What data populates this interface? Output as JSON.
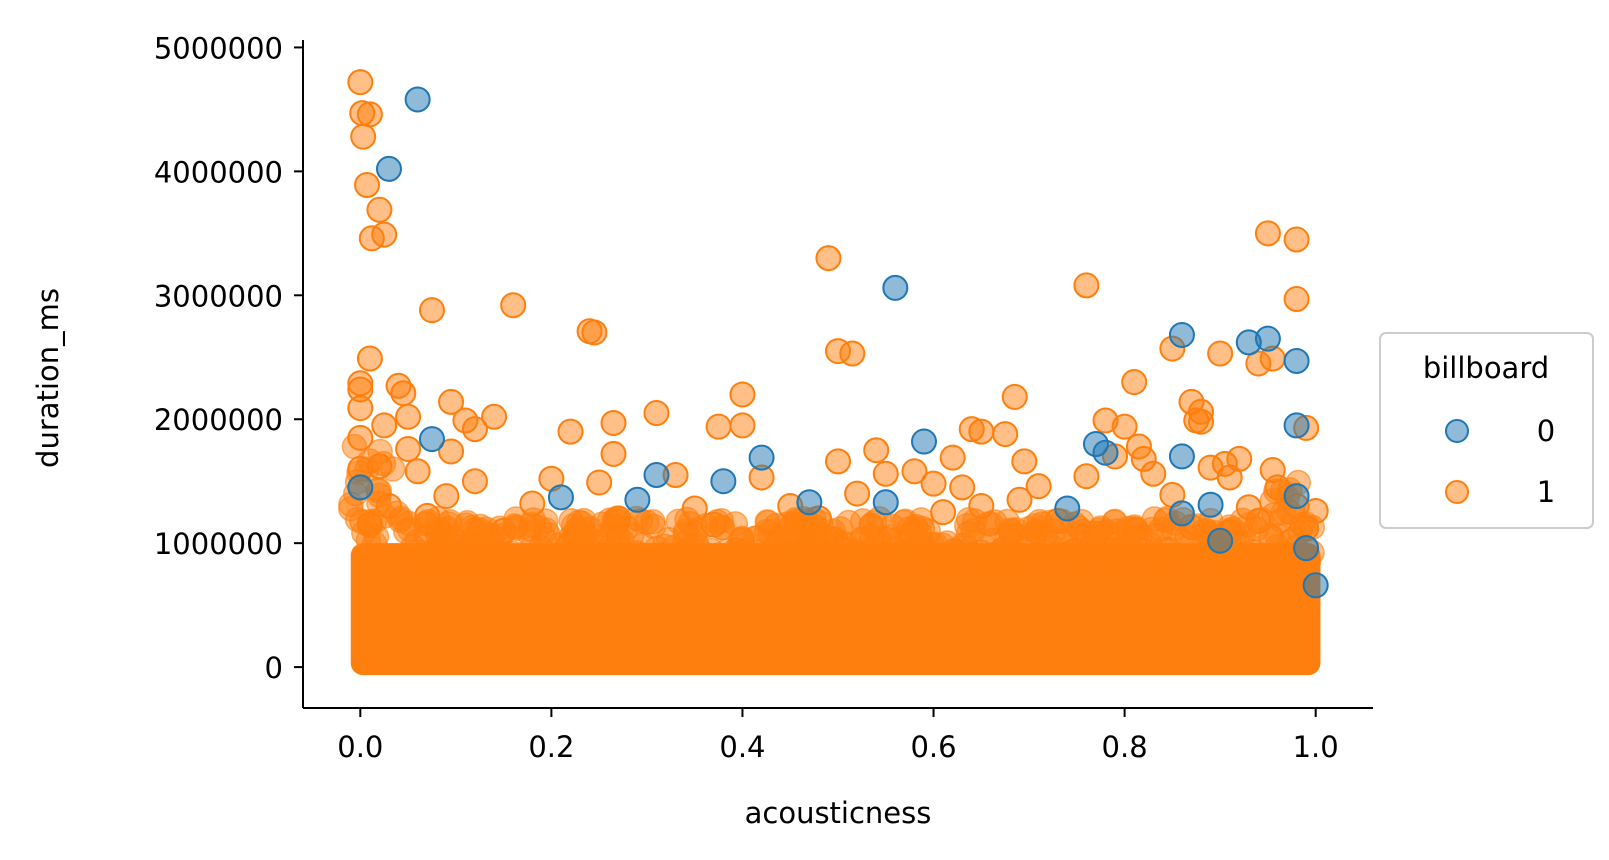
{
  "chart_data": {
    "type": "scatter",
    "title": "",
    "xlabel": "acousticness",
    "ylabel": "duration_ms",
    "xlim": [
      -0.06,
      1.06
    ],
    "ylim": [
      -330000,
      5060000
    ],
    "xticks": [
      0.0,
      0.2,
      0.4,
      0.6,
      0.8,
      1.0
    ],
    "xtick_labels": [
      "0.0",
      "0.2",
      "0.4",
      "0.6",
      "0.8",
      "1.0"
    ],
    "yticks": [
      0,
      1000000,
      2000000,
      3000000,
      4000000,
      5000000
    ],
    "ytick_labels": [
      "0",
      "1000000",
      "2000000",
      "3000000",
      "4000000",
      "5000000"
    ],
    "grid": false,
    "legend": {
      "title": "billboard",
      "placement": "right-outside",
      "entries": [
        "0",
        "1"
      ]
    },
    "series": [
      {
        "name": "0",
        "color": "#1f77b4",
        "points": [
          [
            0.06,
            4580000
          ],
          [
            0.03,
            4020000
          ],
          [
            0.56,
            3060000
          ],
          [
            0.86,
            2680000
          ],
          [
            0.93,
            2620000
          ],
          [
            0.95,
            2650000
          ],
          [
            0.98,
            2470000
          ],
          [
            0.98,
            1950000
          ],
          [
            0.59,
            1820000
          ],
          [
            0.77,
            1800000
          ],
          [
            0.78,
            1730000
          ],
          [
            0.86,
            1700000
          ],
          [
            0.42,
            1690000
          ],
          [
            0.31,
            1550000
          ],
          [
            0.38,
            1500000
          ],
          [
            0.21,
            1370000
          ],
          [
            0.29,
            1350000
          ],
          [
            0.47,
            1330000
          ],
          [
            0.55,
            1330000
          ],
          [
            0.89,
            1310000
          ],
          [
            0.98,
            1380000
          ],
          [
            0.9,
            1020000
          ],
          [
            0.99,
            960000
          ],
          [
            0.075,
            1840000
          ],
          [
            0.74,
            1280000
          ],
          [
            0.86,
            1240000
          ],
          [
            1.0,
            660000
          ],
          [
            0.0,
            1450000
          ]
        ]
      },
      {
        "name": "1",
        "color": "#ff7f0e",
        "points": [
          [
            0.0,
            4720000
          ],
          [
            0.002,
            4470000
          ],
          [
            0.01,
            4460000
          ],
          [
            0.003,
            4280000
          ],
          [
            0.007,
            3890000
          ],
          [
            0.02,
            3690000
          ],
          [
            0.012,
            3460000
          ],
          [
            0.025,
            3490000
          ],
          [
            0.075,
            2880000
          ],
          [
            0.16,
            2920000
          ],
          [
            0.24,
            2710000
          ],
          [
            0.245,
            2700000
          ],
          [
            0.49,
            3300000
          ],
          [
            0.76,
            3080000
          ],
          [
            0.95,
            3500000
          ],
          [
            0.98,
            3450000
          ],
          [
            0.98,
            2970000
          ],
          [
            0.5,
            2550000
          ],
          [
            0.515,
            2530000
          ],
          [
            0.85,
            2570000
          ],
          [
            0.9,
            2530000
          ],
          [
            0.94,
            2450000
          ],
          [
            0.955,
            2490000
          ],
          [
            0.01,
            2490000
          ],
          [
            0.0,
            2290000
          ],
          [
            0.0,
            2240000
          ],
          [
            0.04,
            2270000
          ],
          [
            0.045,
            2210000
          ],
          [
            0.0,
            2090000
          ],
          [
            0.05,
            2020000
          ],
          [
            0.095,
            2140000
          ],
          [
            0.11,
            1990000
          ],
          [
            0.14,
            2020000
          ],
          [
            0.12,
            1920000
          ],
          [
            0.22,
            1900000
          ],
          [
            0.265,
            1970000
          ],
          [
            0.31,
            2050000
          ],
          [
            0.375,
            1940000
          ],
          [
            0.4,
            1950000
          ],
          [
            0.4,
            2200000
          ],
          [
            0.685,
            2180000
          ],
          [
            0.81,
            2300000
          ],
          [
            0.78,
            1990000
          ],
          [
            0.87,
            2140000
          ],
          [
            0.88,
            2060000
          ],
          [
            0.875,
            1990000
          ],
          [
            0.88,
            1980000
          ],
          [
            0.8,
            1940000
          ],
          [
            0.99,
            1930000
          ],
          [
            0.64,
            1920000
          ],
          [
            0.65,
            1900000
          ],
          [
            0.675,
            1880000
          ],
          [
            0.0,
            1850000
          ],
          [
            0.025,
            1950000
          ],
          [
            0.05,
            1760000
          ],
          [
            0.095,
            1740000
          ],
          [
            0.265,
            1720000
          ],
          [
            0.54,
            1750000
          ],
          [
            0.62,
            1690000
          ],
          [
            0.695,
            1660000
          ],
          [
            0.79,
            1700000
          ],
          [
            0.815,
            1780000
          ],
          [
            0.82,
            1680000
          ],
          [
            0.89,
            1610000
          ],
          [
            0.905,
            1640000
          ],
          [
            0.92,
            1680000
          ],
          [
            0.955,
            1590000
          ],
          [
            0.5,
            1660000
          ],
          [
            0.0,
            1600000
          ],
          [
            0.02,
            1620000
          ],
          [
            0.06,
            1580000
          ],
          [
            0.12,
            1500000
          ],
          [
            0.2,
            1520000
          ],
          [
            0.25,
            1490000
          ],
          [
            0.33,
            1550000
          ],
          [
            0.42,
            1530000
          ],
          [
            0.55,
            1560000
          ],
          [
            0.58,
            1580000
          ],
          [
            0.6,
            1480000
          ],
          [
            0.63,
            1450000
          ],
          [
            0.71,
            1460000
          ],
          [
            0.76,
            1540000
          ],
          [
            0.83,
            1560000
          ],
          [
            0.91,
            1530000
          ],
          [
            0.96,
            1450000
          ],
          [
            0.98,
            1300000
          ],
          [
            0.93,
            1290000
          ],
          [
            0.85,
            1390000
          ],
          [
            0.69,
            1350000
          ],
          [
            0.65,
            1300000
          ],
          [
            0.52,
            1400000
          ],
          [
            0.45,
            1300000
          ],
          [
            0.35,
            1280000
          ],
          [
            0.18,
            1320000
          ],
          [
            0.09,
            1380000
          ],
          [
            0.03,
            1300000
          ],
          [
            1.0,
            1260000
          ],
          [
            0.99,
            1120000
          ],
          [
            0.94,
            1180000
          ],
          [
            0.87,
            1130000
          ],
          [
            0.73,
            1180000
          ],
          [
            0.61,
            1250000
          ],
          [
            0.48,
            1200000
          ],
          [
            0.37,
            1150000
          ],
          [
            0.27,
            1200000
          ],
          [
            0.15,
            1100000
          ],
          [
            0.07,
            1220000
          ],
          [
            0.01,
            1150000
          ]
        ]
      }
    ],
    "dense_region": {
      "description_values": {
        "x_min": -0.01,
        "x_max": 1.005,
        "y_min": 0,
        "y_max": 1000000
      }
    }
  }
}
